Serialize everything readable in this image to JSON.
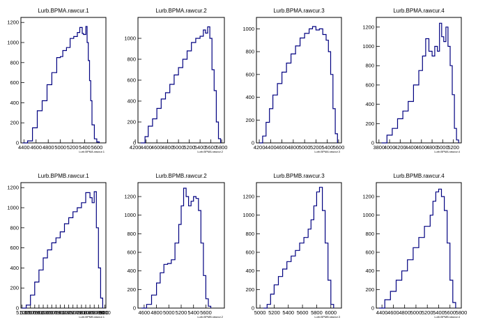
{
  "chart_data": [
    {
      "type": "histogram",
      "title": "Lurb.BPMA.rawcur.1",
      "xlabel": "Lurb.BPMA.rawcur.1",
      "xlim": [
        4350,
        5750
      ],
      "ylim": [
        0,
        1250
      ],
      "xticks": [
        4400,
        4600,
        4800,
        5000,
        5200,
        5400,
        5600
      ],
      "yticks": [
        0,
        200,
        400,
        600,
        800,
        1000,
        1200
      ],
      "x": [
        4380,
        4460,
        4540,
        4620,
        4700,
        4780,
        4860,
        4940,
        5000,
        5040,
        5100,
        5160,
        5220,
        5280,
        5320,
        5360,
        5380,
        5420,
        5440,
        5460,
        5480,
        5500,
        5520,
        5560,
        5600,
        5640
      ],
      "y": [
        0,
        20,
        150,
        320,
        420,
        580,
        700,
        850,
        860,
        920,
        950,
        1040,
        1060,
        1100,
        1150,
        1090,
        1080,
        1160,
        1000,
        820,
        620,
        420,
        180,
        40,
        10,
        0
      ]
    },
    {
      "type": "histogram",
      "title": "Lurb.BPMA.rawcur.2",
      "xlabel": "Lurb.BPMA.rawcur.2",
      "xlim": [
        4250,
        5850
      ],
      "ylim": [
        0,
        1200
      ],
      "xticks": [
        4200,
        4400,
        4600,
        4800,
        5000,
        5200,
        5400,
        5600,
        5800
      ],
      "yticks": [
        0,
        200,
        400,
        600,
        800,
        1000
      ],
      "x": [
        4300,
        4380,
        4440,
        4520,
        4600,
        4680,
        4760,
        4840,
        4920,
        5000,
        5080,
        5160,
        5240,
        5320,
        5400,
        5460,
        5500,
        5540,
        5580,
        5620,
        5660,
        5700,
        5740,
        5780
      ],
      "y": [
        0,
        60,
        160,
        230,
        330,
        420,
        480,
        560,
        650,
        720,
        800,
        880,
        960,
        1000,
        1020,
        1080,
        1050,
        1110,
        1000,
        700,
        500,
        200,
        40,
        0
      ]
    },
    {
      "type": "histogram",
      "title": "Lurb.BPMA.rawcur.3",
      "xlabel": "Lurb.BPMA.rawcur.3",
      "xlim": [
        4150,
        5650
      ],
      "ylim": [
        0,
        1100
      ],
      "xticks": [
        4200,
        4400,
        4600,
        4800,
        5000,
        5200,
        5400,
        5600
      ],
      "yticks": [
        0,
        200,
        400,
        600,
        800,
        1000
      ],
      "x": [
        4200,
        4260,
        4320,
        4380,
        4440,
        4520,
        4600,
        4680,
        4760,
        4840,
        4920,
        5000,
        5080,
        5140,
        5200,
        5260,
        5320,
        5380,
        5420,
        5460,
        5500,
        5540,
        5580
      ],
      "y": [
        0,
        60,
        180,
        300,
        420,
        520,
        620,
        700,
        780,
        850,
        920,
        960,
        1000,
        1020,
        990,
        1000,
        950,
        900,
        800,
        600,
        300,
        80,
        0
      ]
    },
    {
      "type": "histogram",
      "title": "Lurb.BPMA.rawcur.4",
      "xlabel": "Lurb.BPMA.rawcur.4",
      "xlim": [
        3750,
        5350
      ],
      "ylim": [
        0,
        1300
      ],
      "xticks": [
        3800,
        4000,
        4200,
        4400,
        4600,
        4800,
        5000,
        5200
      ],
      "yticks": [
        0,
        200,
        400,
        600,
        800,
        1000,
        1200
      ],
      "x": [
        3850,
        3950,
        4050,
        4150,
        4250,
        4350,
        4450,
        4550,
        4620,
        4680,
        4740,
        4800,
        4850,
        4900,
        4940,
        4980,
        5020,
        5060,
        5100,
        5140,
        5180,
        5220,
        5260,
        5300
      ],
      "y": [
        0,
        80,
        150,
        250,
        330,
        430,
        600,
        750,
        900,
        1080,
        950,
        900,
        1000,
        950,
        1240,
        1100,
        1050,
        1200,
        1000,
        800,
        500,
        150,
        30,
        0
      ]
    },
    {
      "type": "histogram",
      "title": "Lurb.BPMB.rawcur.1",
      "xlabel": "Lurb.BPMB.rawcur.1",
      "xlim": [
        5050,
        9050
      ],
      "ylim": [
        0,
        1250
      ],
      "xticks": [
        5100,
        5300,
        5500,
        5700,
        5900,
        6100,
        6300,
        6500,
        6700,
        6900,
        7100,
        7300,
        7500,
        7700,
        7900,
        8100,
        8300,
        8500,
        8700,
        8900,
        9000
      ],
      "yticks": [
        0,
        200,
        400,
        600,
        800,
        1000,
        1200
      ],
      "x": [
        5100,
        5300,
        5500,
        5700,
        5900,
        6100,
        6300,
        6500,
        6700,
        6900,
        7100,
        7300,
        7500,
        7700,
        7900,
        8100,
        8300,
        8400,
        8500,
        8600,
        8700,
        8800,
        8900
      ],
      "y": [
        0,
        30,
        130,
        260,
        380,
        500,
        580,
        650,
        700,
        760,
        840,
        900,
        960,
        1000,
        1050,
        1150,
        1100,
        1050,
        1160,
        800,
        400,
        100,
        0
      ]
    },
    {
      "type": "histogram",
      "title": "Lurb.BPMB.rawcur.2",
      "xlabel": "Lurb.BPMB.rawcur.2",
      "xlim": [
        4500,
        5900
      ],
      "ylim": [
        0,
        1350
      ],
      "xticks": [
        4600,
        4800,
        5000,
        5200,
        5400,
        5600
      ],
      "yticks": [
        0,
        200,
        400,
        600,
        800,
        1000,
        1200
      ],
      "x": [
        4560,
        4640,
        4720,
        4800,
        4860,
        4920,
        4980,
        5040,
        5100,
        5160,
        5200,
        5240,
        5280,
        5320,
        5360,
        5400,
        5440,
        5480,
        5520,
        5560,
        5600,
        5640,
        5680
      ],
      "y": [
        0,
        40,
        140,
        270,
        380,
        470,
        480,
        520,
        700,
        900,
        1100,
        1290,
        1200,
        1100,
        1150,
        1200,
        1180,
        1050,
        700,
        350,
        100,
        20,
        0
      ]
    },
    {
      "type": "histogram",
      "title": "Lurb.BPMB.rawcur.3",
      "xlabel": "Lurb.BPMB.rawcur.3",
      "xlim": [
        4950,
        6150
      ],
      "ylim": [
        0,
        1350
      ],
      "xticks": [
        5000,
        5200,
        5400,
        5600,
        5800,
        6000
      ],
      "yticks": [
        0,
        200,
        400,
        600,
        800,
        1000,
        1200
      ],
      "x": [
        5050,
        5100,
        5150,
        5200,
        5260,
        5320,
        5380,
        5440,
        5500,
        5560,
        5620,
        5680,
        5720,
        5760,
        5800,
        5840,
        5880,
        5920,
        5960,
        6000,
        6040
      ],
      "y": [
        0,
        40,
        150,
        250,
        340,
        420,
        500,
        560,
        620,
        700,
        760,
        850,
        950,
        1100,
        1250,
        1300,
        1050,
        700,
        300,
        40,
        0
      ]
    },
    {
      "type": "histogram",
      "title": "Lurb.BPMB.rawcur.4",
      "xlabel": "Lurb.BPMB.rawcur.4",
      "xlim": [
        4300,
        5800
      ],
      "ylim": [
        0,
        1350
      ],
      "xticks": [
        4400,
        4600,
        4800,
        5000,
        5200,
        5400,
        5600,
        5800
      ],
      "yticks": [
        0,
        200,
        400,
        600,
        800,
        1000,
        1200
      ],
      "x": [
        4350,
        4450,
        4550,
        4650,
        4750,
        4850,
        4950,
        5050,
        5150,
        5250,
        5300,
        5350,
        5400,
        5450,
        5500,
        5550,
        5600,
        5650,
        5700
      ],
      "y": [
        0,
        90,
        180,
        300,
        400,
        520,
        650,
        760,
        880,
        1000,
        1150,
        1250,
        1280,
        1200,
        1050,
        700,
        300,
        60,
        0
      ]
    }
  ]
}
